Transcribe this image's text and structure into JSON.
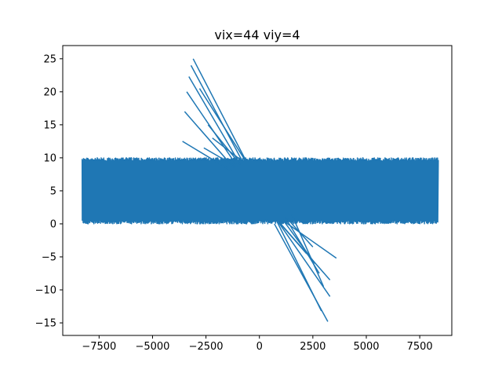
{
  "chart_data": {
    "type": "line",
    "title": "vix=44 viy=4",
    "xlabel": "",
    "ylabel": "",
    "xlim": [
      -9200,
      9000
    ],
    "ylim": [
      -16.9,
      27.0
    ],
    "x_ticks": [
      -7500,
      -5000,
      -2500,
      0,
      2500,
      5000,
      7500
    ],
    "x_tick_labels": [
      "−7500",
      "−5000",
      "−2500",
      "0",
      "2500",
      "5000",
      "7500"
    ],
    "y_ticks": [
      -15,
      -10,
      -5,
      0,
      5,
      10,
      15,
      20,
      25
    ],
    "y_tick_labels": [
      "−15",
      "−10",
      "−5",
      "0",
      "5",
      "10",
      "15",
      "20",
      "25"
    ],
    "grid": false,
    "legend": "none",
    "band": {
      "x_min": -8300,
      "x_max": 8350,
      "y_min": 0,
      "y_max": 10
    },
    "series": [
      {
        "color": "#1f77b4",
        "upper_spikes": [
          {
            "x": [
              -3100,
              -700
            ],
            "y": [
              25.0,
              10.0
            ]
          },
          {
            "x": [
              -3200,
              -800
            ],
            "y": [
              24.0,
              9.5
            ]
          },
          {
            "x": [
              -3300,
              -900
            ],
            "y": [
              22.3,
              9.0
            ]
          },
          {
            "x": [
              -2800,
              -700
            ],
            "y": [
              20.5,
              9.8
            ]
          },
          {
            "x": [
              -3400,
              -1100
            ],
            "y": [
              20.0,
              9.0
            ]
          },
          {
            "x": [
              -3500,
              -1200
            ],
            "y": [
              17.0,
              8.5
            ]
          },
          {
            "x": [
              -3600,
              -1300
            ],
            "y": [
              12.5,
              8.0
            ]
          },
          {
            "x": [
              -2400,
              -900
            ],
            "y": [
              15.0,
              9.0
            ]
          },
          {
            "x": [
              -2600,
              -1000
            ],
            "y": [
              11.5,
              8.5
            ]
          },
          {
            "x": [
              -2200,
              -800
            ],
            "y": [
              13.0,
              9.5
            ]
          }
        ],
        "lower_spikes": [
          {
            "x": [
              700,
              3200
            ],
            "y": [
              0.0,
              -14.8
            ]
          },
          {
            "x": [
              800,
              2900
            ],
            "y": [
              0.5,
              -13.2
            ]
          },
          {
            "x": [
              900,
              3300
            ],
            "y": [
              0.2,
              -11.0
            ]
          },
          {
            "x": [
              1000,
              3300
            ],
            "y": [
              0.0,
              -8.5
            ]
          },
          {
            "x": [
              1100,
              3600
            ],
            "y": [
              0.5,
              -5.2
            ]
          },
          {
            "x": [
              1200,
              2800
            ],
            "y": [
              1.0,
              -7.5
            ]
          },
          {
            "x": [
              1300,
              2500
            ],
            "y": [
              0.8,
              -3.5
            ]
          },
          {
            "x": [
              1500,
              3000
            ],
            "y": [
              1.5,
              -9.5
            ]
          },
          {
            "x": [
              900,
              2200
            ],
            "y": [
              0.3,
              -4.5
            ]
          },
          {
            "x": [
              1100,
              2600
            ],
            "y": [
              0.6,
              -6.0
            ]
          }
        ]
      }
    ]
  }
}
